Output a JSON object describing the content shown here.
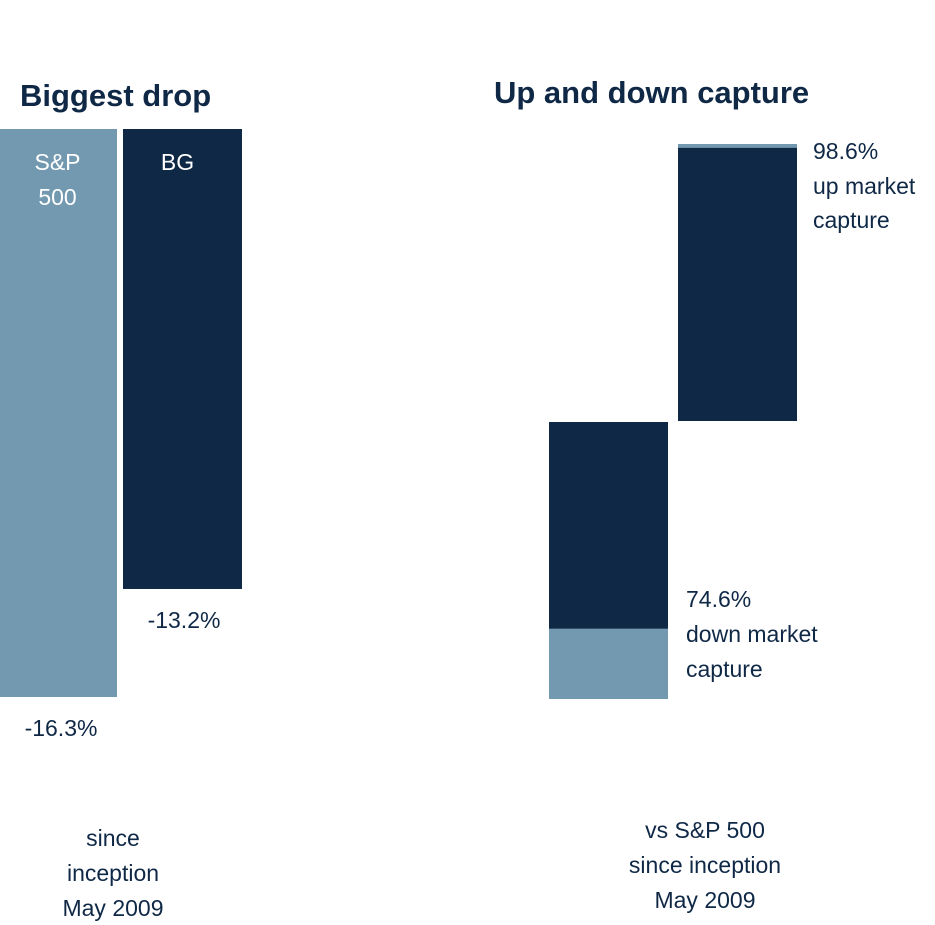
{
  "chart_data": [
    {
      "type": "bar",
      "title": "Biggest drop",
      "series": [
        {
          "name": "S&P 500",
          "name_lines": [
            "S&P",
            "500"
          ],
          "value": -16.3,
          "value_label": "-16.3%",
          "color": "#7399b0"
        },
        {
          "name": "BG",
          "name_lines": [
            "BG"
          ],
          "value": -13.2,
          "value_label": "-13.2%",
          "color": "#0f2846"
        }
      ],
      "note_lines": [
        "since",
        "inception",
        "May 2009"
      ]
    },
    {
      "type": "bar",
      "title": "Up and down capture",
      "bars": [
        {
          "id": "down",
          "value": 74.6,
          "benchmark": 100,
          "label_lines": [
            "74.6%",
            "down market",
            "capture"
          ]
        },
        {
          "id": "up",
          "value": 98.6,
          "benchmark": 100,
          "label_lines": [
            "98.6%",
            "up market",
            "capture"
          ]
        }
      ],
      "colors": {
        "fund": "#0f2846",
        "benchmark": "#7399b0"
      },
      "note_lines": [
        "vs S&P 500",
        "since inception",
        "May 2009"
      ]
    }
  ]
}
